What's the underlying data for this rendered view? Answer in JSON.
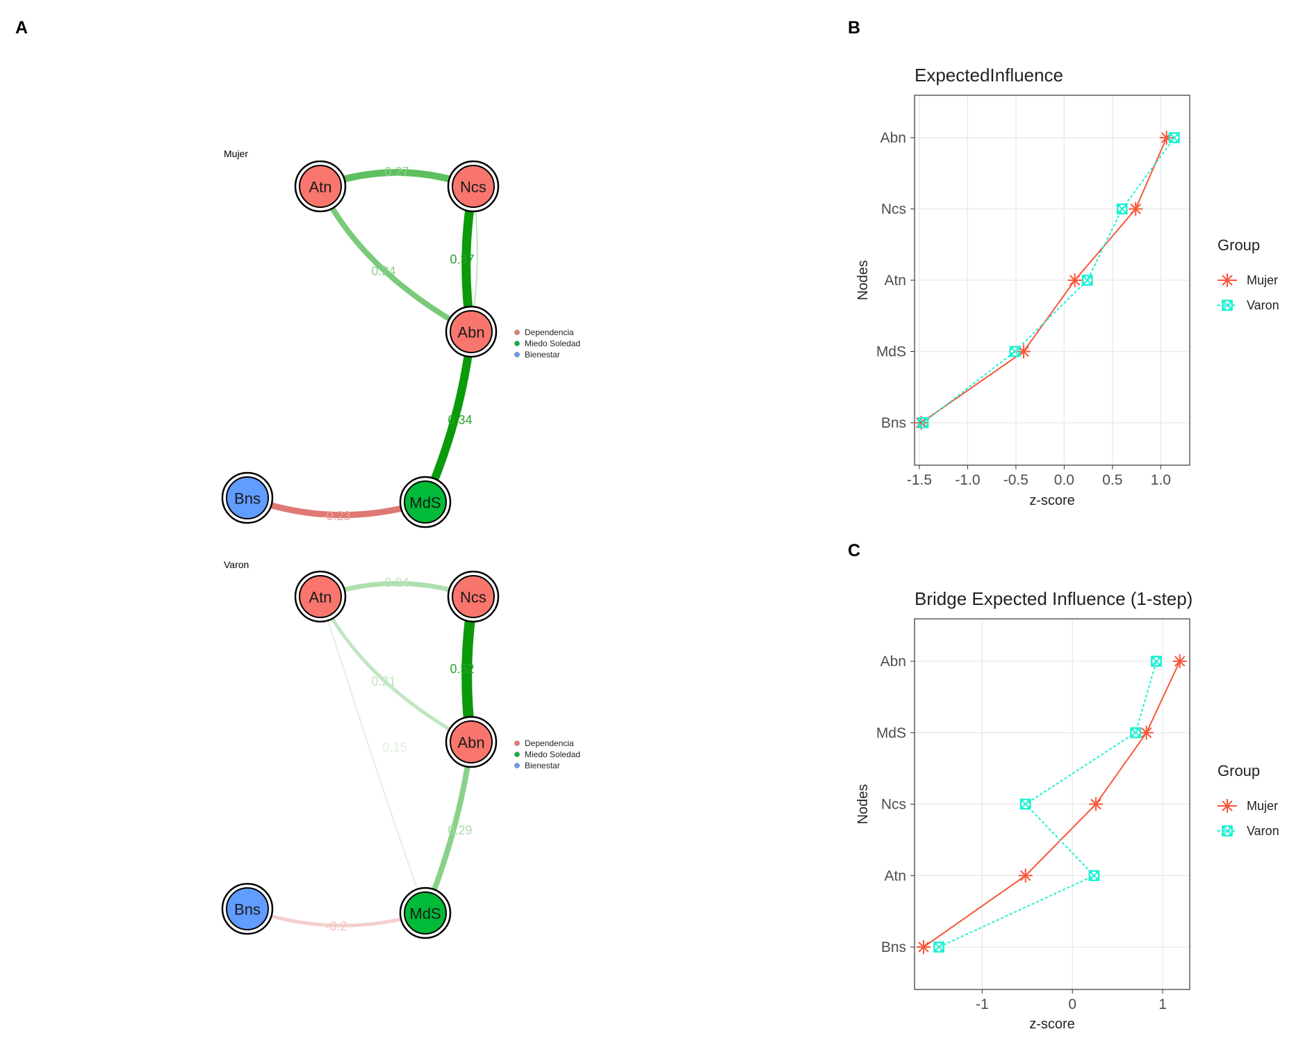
{
  "panels": {
    "a": "A",
    "b": "B",
    "c": "C"
  },
  "networks": [
    {
      "group": "Mujer",
      "nodes": [
        {
          "id": "Atn",
          "color": "#F8766D"
        },
        {
          "id": "Ncs",
          "color": "#F8766D"
        },
        {
          "id": "Abn",
          "color": "#F8766D"
        },
        {
          "id": "Bns",
          "color": "#619CFF"
        },
        {
          "id": "MdS",
          "color": "#00BA38"
        }
      ],
      "edges": [
        {
          "from": "Atn",
          "to": "Ncs",
          "weight": "0.27"
        },
        {
          "from": "Atn",
          "to": "Abn",
          "weight": "0.24"
        },
        {
          "from": "Ncs",
          "to": "Abn",
          "weight": "0.37"
        },
        {
          "from": "Ncs",
          "to": "Abn",
          "weight": ""
        },
        {
          "from": "Abn",
          "to": "MdS",
          "weight": "0.34"
        },
        {
          "from": "Bns",
          "to": "MdS",
          "weight": "-0.23"
        }
      ],
      "legend": [
        "Dependencia",
        "Miedo Soledad",
        "Bienestar"
      ]
    },
    {
      "group": "Varon",
      "nodes": [
        {
          "id": "Atn",
          "color": "#F8766D"
        },
        {
          "id": "Ncs",
          "color": "#F8766D"
        },
        {
          "id": "Abn",
          "color": "#F8766D"
        },
        {
          "id": "Bns",
          "color": "#619CFF"
        },
        {
          "id": "MdS",
          "color": "#00BA38"
        }
      ],
      "edges": [
        {
          "from": "Atn",
          "to": "Ncs",
          "weight": "0.24"
        },
        {
          "from": "Atn",
          "to": "Abn",
          "weight": "0.21"
        },
        {
          "from": "Atn",
          "to": "MdS",
          "weight": "0.15"
        },
        {
          "from": "Ncs",
          "to": "Abn",
          "weight": "0.52"
        },
        {
          "from": "Abn",
          "to": "MdS",
          "weight": "0.29"
        },
        {
          "from": "Bns",
          "to": "MdS",
          "weight": "-0.2"
        }
      ],
      "legend": [
        "Dependencia",
        "Miedo Soledad",
        "Bienestar"
      ]
    }
  ],
  "legend_colors": [
    "#F8766D",
    "#00BA38",
    "#619CFF"
  ],
  "chart_data": [
    {
      "type": "line",
      "title": "ExpectedInfluence",
      "xlabel": "z-score",
      "ylabel": "Nodes",
      "categories": [
        "Bns",
        "MdS",
        "Atn",
        "Ncs",
        "Abn"
      ],
      "xlim": [
        -1.55,
        1.3
      ],
      "xticks": [
        -1.5,
        -1.0,
        -0.5,
        0.0,
        0.5,
        1.0
      ],
      "xtick_labels": [
        "-1.5",
        "-1.0",
        "-0.5",
        "0.0",
        "0.5",
        "1.0"
      ],
      "grid": true,
      "legend_title": "Group",
      "series": [
        {
          "name": "Mujer",
          "color": "#F8553A",
          "values": [
            -1.48,
            -0.42,
            0.11,
            0.74,
            1.06
          ]
        },
        {
          "name": "Varon",
          "color": "#19F2D2",
          "values": [
            -1.46,
            -0.51,
            0.24,
            0.6,
            1.14
          ]
        }
      ]
    },
    {
      "type": "line",
      "title": "Bridge Expected Influence (1-step)",
      "xlabel": "z-score",
      "ylabel": "Nodes",
      "categories": [
        "Bns",
        "Atn",
        "Ncs",
        "MdS",
        "Abn"
      ],
      "xlim": [
        -1.75,
        1.3
      ],
      "xticks": [
        -1,
        0,
        1
      ],
      "xtick_labels": [
        "-1",
        "0",
        "1"
      ],
      "grid": true,
      "legend_title": "Group",
      "series": [
        {
          "name": "Mujer",
          "color": "#F8553A",
          "values": [
            -1.65,
            -0.52,
            0.26,
            0.82,
            1.19
          ]
        },
        {
          "name": "Varon",
          "color": "#19F2D2",
          "values": [
            -1.48,
            0.24,
            -0.52,
            0.7,
            0.93
          ]
        }
      ]
    }
  ]
}
